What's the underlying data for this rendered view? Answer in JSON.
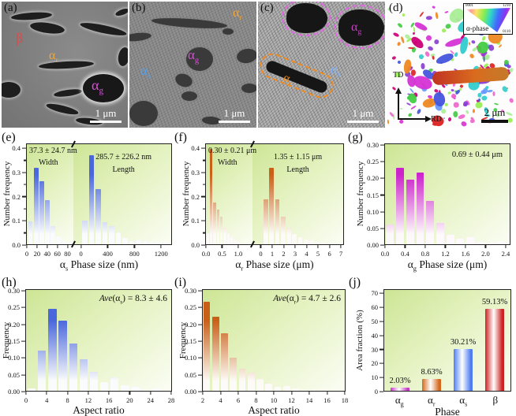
{
  "panels": {
    "a": {
      "tag": "(a)",
      "beta": "β",
      "alpha_r": {
        "pre": "α",
        "sub": "r"
      },
      "alpha_g": {
        "pre": "α",
        "sub": "g"
      },
      "scalebar": "1 μm"
    },
    "b": {
      "tag": "(b)",
      "alpha_r": {
        "pre": "α",
        "sub": "r"
      },
      "alpha_g": {
        "pre": "α",
        "sub": "g"
      },
      "alpha_s": {
        "pre": "α",
        "sub": "s"
      },
      "scalebar": "1 μm"
    },
    "c": {
      "tag": "(c)",
      "alpha_g": {
        "pre": "α",
        "sub": "g"
      },
      "alpha_s": {
        "pre": "α",
        "sub": "s"
      },
      "alpha_r": {
        "pre": "α",
        "sub": "r"
      },
      "scalebar": "1 μm"
    },
    "d": {
      "tag": "(d)",
      "legend_title": "α-phase",
      "corner_tl": "0001",
      "corner_tr": "1210",
      "corner_br": "0110",
      "axis_vertical": "TD",
      "axis_horizontal": "RD",
      "scalebar": "2 μm"
    }
  },
  "colors": {
    "beta_label": "#e84545",
    "alpha_r_label": "#f2a638",
    "alpha_g_label": "#d84fd8",
    "alpha_s_label": "#4aa3ff",
    "hist_blue": "#4a67dc",
    "hist_orange": "#c96018",
    "hist_magenta": "#cc22cc",
    "bar_red": "#cc2222"
  },
  "ipf_palette": [
    "#d633d6",
    "#8a3fd0",
    "#4455dd",
    "#44cc44",
    "#99ee55",
    "#dd2222",
    "#ee8822",
    "#ee66cc",
    "#33cccc",
    "#cc0077",
    "#6699ff",
    "#aaee99"
  ],
  "chart_data": [
    {
      "id": "e",
      "tag": "(e)",
      "type": "bar",
      "ylabel": "Number frequency",
      "ymax": 0.42,
      "minor": true,
      "yticks": [
        {
          "v": 0,
          "t": "0.0"
        },
        {
          "v": 0.1,
          "t": "0.1"
        },
        {
          "v": 0.2,
          "t": "0.2"
        },
        {
          "v": 0.3,
          "t": "0.3"
        },
        {
          "v": 0.4,
          "t": "0.4"
        }
      ],
      "xlabel": {
        "pre": "α",
        "sub": "s",
        "post": " Phase size (nm)"
      },
      "color": "#4a67dc",
      "plots": [
        {
          "name": "Width",
          "ann1": "37.3 ± 24.7 nm",
          "ann2": "Width",
          "xmin": 0,
          "xmax": 92,
          "bar_start": 3,
          "bar_step": 11,
          "values": [
            0.095,
            0.32,
            0.265,
            0.185,
            0.075,
            0.032,
            0.012,
            0.006
          ],
          "xticks": [
            {
              "v": 0,
              "t": "0"
            },
            {
              "v": 20,
              "t": "20"
            },
            {
              "v": 40,
              "t": "40"
            },
            {
              "v": 60,
              "t": "60"
            },
            {
              "v": 80,
              "t": "80"
            }
          ]
        },
        {
          "name": "Length",
          "ann1": "285.7 ± 226.2 nm",
          "ann2": "Length",
          "xmin": -110,
          "xmax": 1350,
          "bar_start": 20,
          "bar_step": 100,
          "values": [
            0.098,
            0.375,
            0.23,
            0.093,
            0.075,
            0.05,
            0.025,
            0.013,
            0.016,
            0.013,
            0.01,
            0.006,
            0.008
          ],
          "xticks": [
            {
              "v": 0,
              "t": "0"
            },
            {
              "v": 400,
              "t": "400"
            },
            {
              "v": 800,
              "t": "800"
            },
            {
              "v": 1200,
              "t": "1200"
            }
          ]
        }
      ]
    },
    {
      "id": "f",
      "tag": "(f)",
      "type": "bar",
      "ylabel": "Number frequency",
      "ymax": 0.42,
      "minor": true,
      "yticks": [
        {
          "v": 0,
          "t": "0.0"
        },
        {
          "v": 0.1,
          "t": "0.1"
        },
        {
          "v": 0.2,
          "t": "0.2"
        },
        {
          "v": 0.3,
          "t": "0.3"
        },
        {
          "v": 0.4,
          "t": "0.4"
        }
      ],
      "xlabel": {
        "pre": "α",
        "sub": "r",
        "post": " Phase size (μm)"
      },
      "color": "#c96018",
      "plots": [
        {
          "name": "Width",
          "ann1": "0.30 ± 0.21 μm",
          "ann2": "Width",
          "xmin": 0,
          "xmax": 1.45,
          "bar_start": 0.02,
          "bar_step": 0.105,
          "values": [
            0.045,
            0.4,
            0.175,
            0.145,
            0.115,
            0.07,
            0.045,
            0.03,
            0.02,
            0.012,
            0.008,
            0.005
          ],
          "xticks": [
            {
              "v": 0,
              "t": "0.0"
            },
            {
              "v": 0.5,
              "t": "0.5"
            },
            {
              "v": 1.0,
              "t": "1.0"
            }
          ]
        },
        {
          "name": "Length",
          "ann1": "1.35 ± 1.15 μm",
          "ann2": "Length",
          "xmin": -0.7,
          "xmax": 7.2,
          "bar_start": 0.25,
          "bar_step": 0.5,
          "values": [
            0.19,
            0.32,
            0.19,
            0.115,
            0.07,
            0.042,
            0.03,
            0.02,
            0.015,
            0.01,
            0.008,
            0.005
          ],
          "xticks": [
            {
              "v": 0,
              "t": "0"
            },
            {
              "v": 1,
              "t": "1"
            },
            {
              "v": 2,
              "t": "2"
            },
            {
              "v": 3,
              "t": "3"
            },
            {
              "v": 4,
              "t": "4"
            },
            {
              "v": 5,
              "t": "5"
            },
            {
              "v": 6,
              "t": "6"
            },
            {
              "v": 7,
              "t": "7"
            }
          ]
        }
      ]
    },
    {
      "id": "g",
      "tag": "(g)",
      "type": "bar",
      "ylabel": "Number frequency",
      "ymax": 0.305,
      "minor": false,
      "yticks": [
        {
          "v": 0,
          "t": "0.00"
        },
        {
          "v": 0.05,
          "t": "0.05"
        },
        {
          "v": 0.1,
          "t": "0.10"
        },
        {
          "v": 0.15,
          "t": "0.15"
        },
        {
          "v": 0.2,
          "t": "0.20"
        },
        {
          "v": 0.25,
          "t": "0.25"
        },
        {
          "v": 0.3,
          "t": "0.30"
        }
      ],
      "xlabel": {
        "pre": "α",
        "sub": "g",
        "post": " Phase size (μm)"
      },
      "color": "#cc22cc",
      "ann": "0.69 ± 0.44 μm",
      "plots": [
        {
          "name": "Size",
          "xmin": 0,
          "xmax": 2.48,
          "bar_start": 0.02,
          "bar_step": 0.2,
          "values": [
            0.059,
            0.233,
            0.196,
            0.218,
            0.133,
            0.066,
            0.03,
            0.017,
            0.021,
            0.007,
            0.004,
            0.007
          ],
          "xticks": [
            {
              "v": 0,
              "t": "0.0"
            },
            {
              "v": 0.4,
              "t": "0.4"
            },
            {
              "v": 0.8,
              "t": "0.8"
            },
            {
              "v": 1.2,
              "t": "1.2"
            },
            {
              "v": 1.6,
              "t": "1.6"
            },
            {
              "v": 2.0,
              "t": "2.0"
            },
            {
              "v": 2.4,
              "t": "2.4"
            }
          ]
        }
      ]
    },
    {
      "id": "h",
      "tag": "(h)",
      "type": "bar",
      "ylabel": "Frequency",
      "ymax": 0.305,
      "minor": false,
      "yticks": [
        {
          "v": 0,
          "t": "0.00"
        },
        {
          "v": 0.05,
          "t": "0.05"
        },
        {
          "v": 0.1,
          "t": "0.10"
        },
        {
          "v": 0.15,
          "t": "0.15"
        },
        {
          "v": 0.2,
          "t": "0.20"
        },
        {
          "v": 0.25,
          "t": "0.25"
        },
        {
          "v": 0.3,
          "t": "0.30"
        }
      ],
      "xlabel": {
        "pre": "",
        "sub": "",
        "post": "Aspect ratio"
      },
      "color": "#4a67dc",
      "ann_ave": "Ave",
      "ann_mid": "(α",
      "ann_sub": "s",
      "ann_post": ") = 8.3 ± 4.6",
      "plots": [
        {
          "name": "Aspect ratio",
          "xmin": 0,
          "xmax": 28,
          "bar_start": 0.3,
          "bar_step": 2,
          "values": [
            0.007,
            0.122,
            0.248,
            0.213,
            0.143,
            0.096,
            0.057,
            0.026,
            0.041,
            0.017,
            0.012,
            0.003,
            0.006
          ],
          "xticks": [
            {
              "v": 0,
              "t": "0"
            },
            {
              "v": 4,
              "t": "4"
            },
            {
              "v": 8,
              "t": "8"
            },
            {
              "v": 12,
              "t": "12"
            },
            {
              "v": 16,
              "t": "16"
            },
            {
              "v": 20,
              "t": "20"
            },
            {
              "v": 24,
              "t": "24"
            },
            {
              "v": 28,
              "t": "28"
            }
          ]
        }
      ]
    },
    {
      "id": "i",
      "tag": "(i)",
      "type": "bar",
      "ylabel": "Frequency",
      "ymax": 0.305,
      "minor": false,
      "yticks": [
        {
          "v": 0,
          "t": "0.00"
        },
        {
          "v": 0.05,
          "t": "0.05"
        },
        {
          "v": 0.1,
          "t": "0.10"
        },
        {
          "v": 0.15,
          "t": "0.15"
        },
        {
          "v": 0.2,
          "t": "0.20"
        },
        {
          "v": 0.25,
          "t": "0.25"
        },
        {
          "v": 0.3,
          "t": "0.30"
        }
      ],
      "xlabel": {
        "pre": "",
        "sub": "",
        "post": "Aspect ratio"
      },
      "color": "#c96018",
      "ann_ave": "Ave",
      "ann_mid": "(α",
      "ann_sub": "r",
      "ann_post": ") = 4.7 ± 2.6",
      "plots": [
        {
          "name": "Aspect ratio",
          "xmin": 2,
          "xmax": 18,
          "bar_start": 2.05,
          "bar_step": 1,
          "values": [
            0.27,
            0.225,
            0.175,
            0.1,
            0.066,
            0.054,
            0.035,
            0.022,
            0.012,
            0.014,
            0.006,
            0.003,
            0.003,
            0.002
          ],
          "xticks": [
            {
              "v": 2,
              "t": "2"
            },
            {
              "v": 4,
              "t": "4"
            },
            {
              "v": 6,
              "t": "6"
            },
            {
              "v": 8,
              "t": "8"
            },
            {
              "v": 10,
              "t": "10"
            },
            {
              "v": 12,
              "t": "12"
            },
            {
              "v": 14,
              "t": "14"
            },
            {
              "v": 16,
              "t": "16"
            },
            {
              "v": 18,
              "t": "18"
            }
          ]
        }
      ]
    },
    {
      "id": "j",
      "tag": "(j)",
      "type": "catbar",
      "ylabel": "Area fraction (%)",
      "ymax": 73,
      "yticks": [
        {
          "v": 0,
          "t": "0"
        },
        {
          "v": 10,
          "t": "10"
        },
        {
          "v": 20,
          "t": "20"
        },
        {
          "v": 30,
          "t": "30"
        },
        {
          "v": 40,
          "t": "40"
        },
        {
          "v": 50,
          "t": "50"
        },
        {
          "v": 60,
          "t": "60"
        },
        {
          "v": 70,
          "t": "70"
        }
      ],
      "xlabel": {
        "pre": "",
        "sub": "",
        "post": "Phase"
      },
      "categories": [
        {
          "pre": "α",
          "sub": "g",
          "value": 2.03,
          "label": "2.03%",
          "color": "#c838c8"
        },
        {
          "pre": "α",
          "sub": "r",
          "value": 8.63,
          "label": "8.63%",
          "color": "#d4691e"
        },
        {
          "pre": "α",
          "sub": "s",
          "value": 30.21,
          "label": "30.21%",
          "color": "#4f7df0"
        },
        {
          "pre": "β",
          "sub": "",
          "value": 59.13,
          "label": "59.13%",
          "color": "#cc2222"
        }
      ]
    }
  ]
}
